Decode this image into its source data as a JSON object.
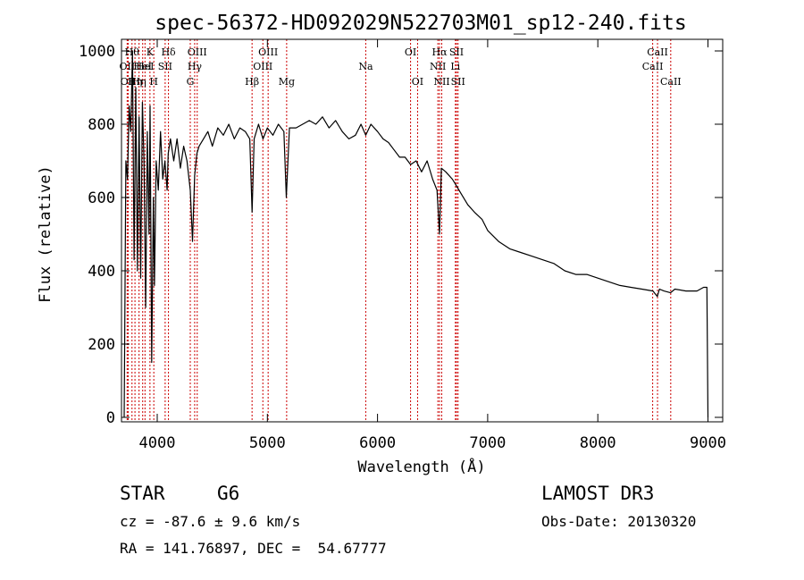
{
  "title": "spec-56372-HD092029N522703M01_sp12-240.fits",
  "info": {
    "object_class": "STAR",
    "subclass": "G6",
    "survey": "LAMOST DR3",
    "cz": "cz = -87.6 ± 9.6 km/s",
    "obs_date": "Obs-Date: 20130320",
    "radec": "RA = 141.76897, DEC =  54.67777"
  },
  "colors": {
    "line_markers": "#cc0000",
    "spectrum": "#000000"
  },
  "chart_data": {
    "type": "line",
    "title": "spec-56372-HD092029N522703M01_sp12-240.fits",
    "xlabel": "Wavelength (Å)",
    "ylabel": "Flux (relative)",
    "xlim": [
      3700,
      9100
    ],
    "ylim": [
      0,
      1020
    ],
    "xticks": [
      4000,
      5000,
      6000,
      7000,
      8000,
      9000
    ],
    "yticks": [
      0,
      200,
      400,
      600,
      800,
      1000
    ],
    "series": [
      {
        "name": "spectrum",
        "x": [
          3700,
          3715,
          3730,
          3745,
          3760,
          3775,
          3790,
          3805,
          3820,
          3835,
          3850,
          3865,
          3880,
          3895,
          3910,
          3925,
          3935,
          3950,
          3965,
          3975,
          3990,
          4010,
          4030,
          4050,
          4070,
          4090,
          4100,
          4120,
          4150,
          4180,
          4210,
          4240,
          4270,
          4300,
          4320,
          4340,
          4360,
          4380,
          4420,
          4460,
          4500,
          4550,
          4600,
          4650,
          4700,
          4750,
          4800,
          4840,
          4861,
          4880,
          4920,
          4960,
          5000,
          5050,
          5100,
          5150,
          5172,
          5200,
          5260,
          5320,
          5380,
          5440,
          5500,
          5560,
          5620,
          5680,
          5740,
          5800,
          5850,
          5893,
          5940,
          6000,
          6050,
          6100,
          6150,
          6200,
          6250,
          6300,
          6350,
          6400,
          6450,
          6500,
          6540,
          6563,
          6580,
          6620,
          6680,
          6720,
          6760,
          6820,
          6880,
          6950,
          7000,
          7100,
          7200,
          7300,
          7400,
          7500,
          7600,
          7700,
          7800,
          7900,
          8000,
          8100,
          8200,
          8300,
          8400,
          8500,
          8540,
          8560,
          8600,
          8660,
          8700,
          8800,
          8900,
          8960,
          8990,
          9000
        ],
        "y": [
          0,
          700,
          650,
          850,
          780,
          1000,
          430,
          900,
          400,
          820,
          380,
          860,
          700,
          300,
          780,
          500,
          850,
          150,
          600,
          360,
          700,
          620,
          780,
          650,
          700,
          620,
          720,
          760,
          700,
          760,
          680,
          740,
          700,
          620,
          480,
          660,
          720,
          740,
          760,
          780,
          740,
          790,
          770,
          800,
          760,
          790,
          780,
          760,
          560,
          760,
          800,
          760,
          790,
          770,
          800,
          780,
          600,
          790,
          790,
          800,
          810,
          800,
          820,
          790,
          810,
          780,
          760,
          770,
          800,
          770,
          800,
          780,
          760,
          750,
          730,
          710,
          710,
          690,
          700,
          670,
          700,
          650,
          620,
          500,
          680,
          670,
          650,
          630,
          610,
          580,
          560,
          540,
          510,
          480,
          460,
          450,
          440,
          430,
          420,
          400,
          390,
          390,
          380,
          370,
          360,
          355,
          350,
          345,
          330,
          350,
          345,
          340,
          350,
          345,
          345,
          355,
          355,
          0
        ]
      }
    ],
    "line_markers": [
      {
        "wavelength": 3727,
        "label": "OII",
        "row": 2
      },
      {
        "wavelength": 3736,
        "label": "OII",
        "row": 3
      },
      {
        "wavelength": 3771,
        "label": "Hθ",
        "row": 1
      },
      {
        "wavelength": 3798,
        "label": "Hη",
        "row": 3
      },
      {
        "wavelength": 3835,
        "label": "Hη",
        "row": 3
      },
      {
        "wavelength": 3868,
        "label": "HeI",
        "row": 2
      },
      {
        "wavelength": 3889,
        "label": "HeI",
        "row": 2
      },
      {
        "wavelength": 3934,
        "label": "K",
        "row": 1
      },
      {
        "wavelength": 3969,
        "label": "H",
        "row": 3
      },
      {
        "wavelength": 4072,
        "label": "SII",
        "row": 2
      },
      {
        "wavelength": 4102,
        "label": "Hδ",
        "row": 1
      },
      {
        "wavelength": 4300,
        "label": "G",
        "row": 3
      },
      {
        "wavelength": 4340,
        "label": "Hγ",
        "row": 2
      },
      {
        "wavelength": 4363,
        "label": "OIII",
        "row": 1
      },
      {
        "wavelength": 4861,
        "label": "Hβ",
        "row": 3
      },
      {
        "wavelength": 4959,
        "label": "OIII",
        "row": 2
      },
      {
        "wavelength": 5007,
        "label": "OIII",
        "row": 1
      },
      {
        "wavelength": 5175,
        "label": "Mg",
        "row": 3
      },
      {
        "wavelength": 5893,
        "label": "Na",
        "row": 2
      },
      {
        "wavelength": 6300,
        "label": "OI",
        "row": 1
      },
      {
        "wavelength": 6364,
        "label": "OI",
        "row": 3
      },
      {
        "wavelength": 6548,
        "label": "NII",
        "row": 2
      },
      {
        "wavelength": 6563,
        "label": "Hα",
        "row": 1
      },
      {
        "wavelength": 6583,
        "label": "NII",
        "row": 3
      },
      {
        "wavelength": 6707,
        "label": "Li",
        "row": 2
      },
      {
        "wavelength": 6717,
        "label": "SII",
        "row": 1
      },
      {
        "wavelength": 6731,
        "label": "SII",
        "row": 3
      },
      {
        "wavelength": 8498,
        "label": "CaII",
        "row": 2
      },
      {
        "wavelength": 8542,
        "label": "CaII",
        "row": 1
      },
      {
        "wavelength": 8662,
        "label": "CaII",
        "row": 3
      }
    ]
  }
}
